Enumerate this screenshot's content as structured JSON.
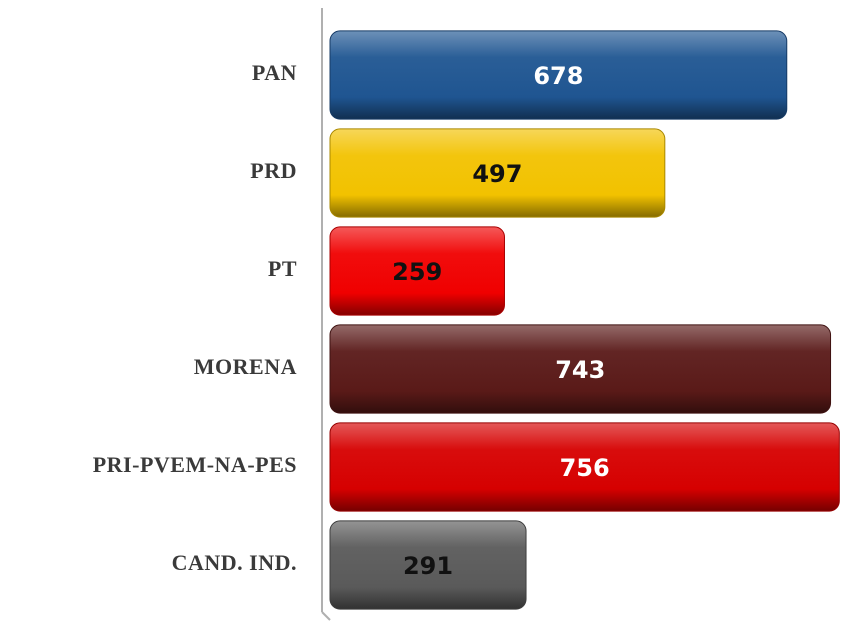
{
  "chart_data": {
    "type": "bar",
    "orientation": "horizontal",
    "categories": [
      "PAN",
      "PRD",
      "PT",
      "MORENA",
      "PRI-PVEM-NA-PES",
      "CAND. IND."
    ],
    "values": [
      678,
      497,
      259,
      743,
      756,
      291
    ],
    "colors": [
      "#1f5591",
      "#f2c200",
      "#f00000",
      "#5a1a18",
      "#d60000",
      "#5a5a5a"
    ],
    "xlim": [
      0,
      760
    ]
  }
}
